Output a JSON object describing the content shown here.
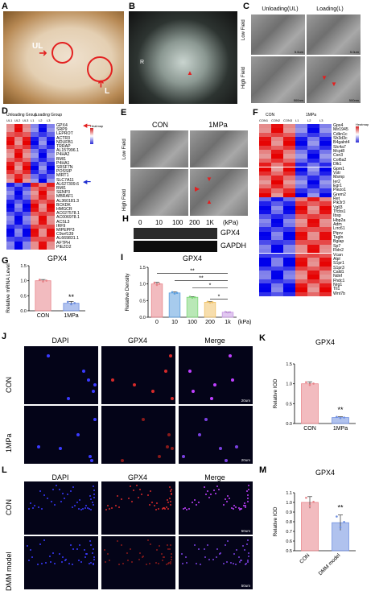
{
  "panels": {
    "A": {
      "label": "A",
      "ul": "UL",
      "l": "L"
    },
    "B": {
      "label": "B",
      "r": "R"
    },
    "C": {
      "label": "C",
      "unloading": "Unloading(UL)",
      "loading": "Loading(L)",
      "low": "Low Field",
      "high": "High Field",
      "scale1": "5.0um",
      "scale2": "5.0um",
      "scale3": "500nm",
      "scale4": "500nm"
    },
    "D": {
      "label": "D",
      "unloading_group": "Unloading Group",
      "loading_group": "Loading Group",
      "cols": [
        "UL1",
        "UL2",
        "UL3",
        "L1",
        "L2",
        "L3"
      ],
      "genes": [
        "GPX4",
        "SRP9",
        "LEPROT",
        "ACTR3",
        "NDUFB1",
        "TRRAP",
        "AL157996.1",
        "P4HA2",
        "BMI1",
        "P4HA1",
        "SRSF7N",
        "POSSIP",
        "MIRT1",
        "SLC7A11",
        "AL627309.6",
        "BMI1",
        "SENP3",
        "MBRAF1",
        "AL360181.3",
        "BCKDK",
        "HMGCR",
        "AC027578.1",
        "AC006978.1",
        "ACSL3",
        "IRF9",
        "MIPEPP3",
        "C9orf139",
        "AL669831.1",
        "AFTPH",
        "PIEZO2"
      ],
      "heatmap": "Heatmap"
    },
    "E": {
      "label": "E",
      "con": "CON",
      "mpa": "1MPa",
      "low": "Low Field",
      "high": "High Field"
    },
    "F": {
      "label": "F",
      "con": "CON",
      "mpa": "1MPa",
      "cols": [
        "CON1",
        "CON2",
        "CON3",
        "L1",
        "L2",
        "L3"
      ],
      "genes": [
        "Gpx4",
        "Mir1945",
        "Cdkn1c",
        "Sh3d3c",
        "B4galnt4",
        "Slc4a7",
        "Mcpt8",
        "Csn3",
        "Col6a2",
        "Dlk1",
        "Gpm1",
        "Vstr",
        "Msmp",
        "Ier2",
        "Egr1",
        "Piezo1",
        "Grem2",
        "Ret",
        "Pik3r3",
        "Vgll3",
        "Tfcbs1",
        "Ibsp",
        "Hbp2a",
        "Adm",
        "Lrrc61",
        "Ptprv",
        "Tagln",
        "Bglap",
        "Sp7",
        "Fbln2",
        "Vcan",
        "Alpl",
        "S1pr1",
        "S1pr3",
        "Cald1",
        "Ndnf",
        "Fhdc1",
        "Nrg1",
        "Tll1",
        "Wnt7b"
      ],
      "heatmap": "Heatmap"
    },
    "G": {
      "label": "G",
      "title": "GPX4",
      "ylabel": "Relative mRNA Level",
      "sig": "**"
    },
    "H": {
      "label": "H",
      "lanes": [
        "0",
        "10",
        "100",
        "200",
        "1K"
      ],
      "unit": "(kPa)",
      "band1": "GPX4",
      "band2": "GAPDH"
    },
    "I": {
      "label": "I",
      "title": "GPX4",
      "ylabel": "Relative Density",
      "xunit": "(kPa)",
      "sig": [
        "**",
        "**",
        "*",
        "*"
      ]
    },
    "J": {
      "label": "J",
      "col1": "DAPI",
      "col2": "GPX4",
      "col3": "Merge",
      "row1": "CON",
      "row2": "1MPa",
      "scale": "20um"
    },
    "K": {
      "label": "K",
      "title": "GPX4",
      "ylabel": "Relative IOD",
      "sig": "**"
    },
    "L": {
      "label": "L",
      "col1": "DAPI",
      "col2": "GPX4",
      "col3": "Merge",
      "row1": "CON",
      "row2": "DMM model",
      "scale": "50um"
    },
    "M": {
      "label": "M",
      "title": "GPX4",
      "ylabel": "Relative IOD",
      "sig": "**"
    }
  },
  "chart_data": [
    {
      "id": "G",
      "type": "bar",
      "categories": [
        "CON",
        "1MPa"
      ],
      "values": [
        1.0,
        0.25
      ],
      "errors": [
        0.04,
        0.06
      ],
      "title": "GPX4",
      "ylabel": "Relative mRNA Level",
      "ylim": [
        0,
        1.5
      ],
      "yticks": [
        "0.0",
        "0.5",
        "1.0",
        "1.5"
      ],
      "colors": [
        "#e8848a",
        "#6f8fe0"
      ]
    },
    {
      "id": "I",
      "type": "bar",
      "categories": [
        "0",
        "10",
        "100",
        "200",
        "1k"
      ],
      "values": [
        1.0,
        0.73,
        0.6,
        0.45,
        0.15
      ],
      "errors": [
        0.05,
        0.03,
        0.02,
        0.02,
        0.01
      ],
      "title": "GPX4",
      "ylabel": "Relative Density",
      "ylim": [
        0,
        1.5
      ],
      "yticks": [
        "0.0",
        "0.5",
        "1.0",
        "1.5"
      ],
      "colors": [
        "#e8848a",
        "#5ea0df",
        "#7fd67a",
        "#f0c36a",
        "#c99be3"
      ]
    },
    {
      "id": "K",
      "type": "bar",
      "categories": [
        "CON",
        "1MPa"
      ],
      "values": [
        1.0,
        0.15
      ],
      "errors": [
        0.05,
        0.02
      ],
      "title": "GPX4",
      "ylabel": "Relative IOD",
      "ylim": [
        0,
        1.5
      ],
      "yticks": [
        "0.0",
        "0.5",
        "1.0",
        "1.5"
      ],
      "colors": [
        "#e8848a",
        "#6f8fe0"
      ]
    },
    {
      "id": "M",
      "type": "bar",
      "categories": [
        "CON",
        "DMM model"
      ],
      "values": [
        1.0,
        0.79
      ],
      "errors": [
        0.06,
        0.08
      ],
      "title": "GPX4",
      "ylabel": "Relative IOD",
      "ylim": [
        0.5,
        1.1
      ],
      "yticks": [
        "0.5",
        "0.6",
        "0.7",
        "0.8",
        "0.9",
        "1.0",
        "1.1"
      ],
      "colors": [
        "#e8848a",
        "#6f8fe0"
      ]
    }
  ]
}
